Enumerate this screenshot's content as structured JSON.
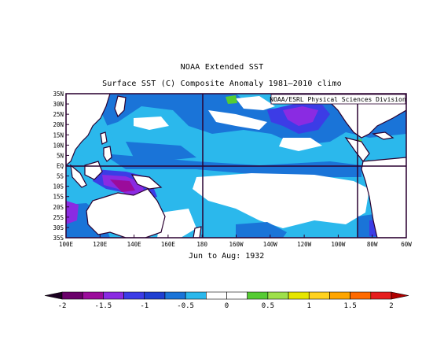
{
  "title_line1": "NOAA Extended SST",
  "title_line2": "Surface SST (C) Composite Anomaly 1981–2010 climo",
  "credit": "NOAA/ESRL Physical Sciences Division",
  "period": "Jun to Aug: 1932",
  "lat_labels": [
    "35N",
    "30N",
    "25N",
    "20N",
    "15N",
    "10N",
    "5N",
    "EQ",
    "5S",
    "10S",
    "15S",
    "20S",
    "25S",
    "30S",
    "35S"
  ],
  "lon_labels": [
    "100E",
    "120E",
    "140E",
    "160E",
    "180",
    "160W",
    "140W",
    "120W",
    "100W",
    "80W",
    "60W"
  ],
  "colorbar": {
    "tick_labels": [
      "-2",
      "-1.5",
      "-1",
      "-0.5",
      "0",
      "0.5",
      "1",
      "1.5",
      "2"
    ],
    "colors": [
      "#6a006a",
      "#9b0c9b",
      "#8a2be2",
      "#3c3ce6",
      "#1f3fd1",
      "#1a74d8",
      "#2bb8ec",
      "#ffffff",
      "#ffffff",
      "#55cc33",
      "#9ee04a",
      "#e6e600",
      "#ffd21f",
      "#ffa500",
      "#ff6a00",
      "#e61e1e"
    ],
    "low_color": "#1a0020",
    "high_color": "#b00000"
  },
  "map_colors": {
    "white": "#ffffff",
    "light_blue": "#2bb8ec",
    "mid_blue": "#1a74d8",
    "dark_blue": "#3c3ce6",
    "purple": "#8a2be2",
    "magenta": "#9b0c9b",
    "green": "#55cc33",
    "land_outline": "#2a0030"
  }
}
